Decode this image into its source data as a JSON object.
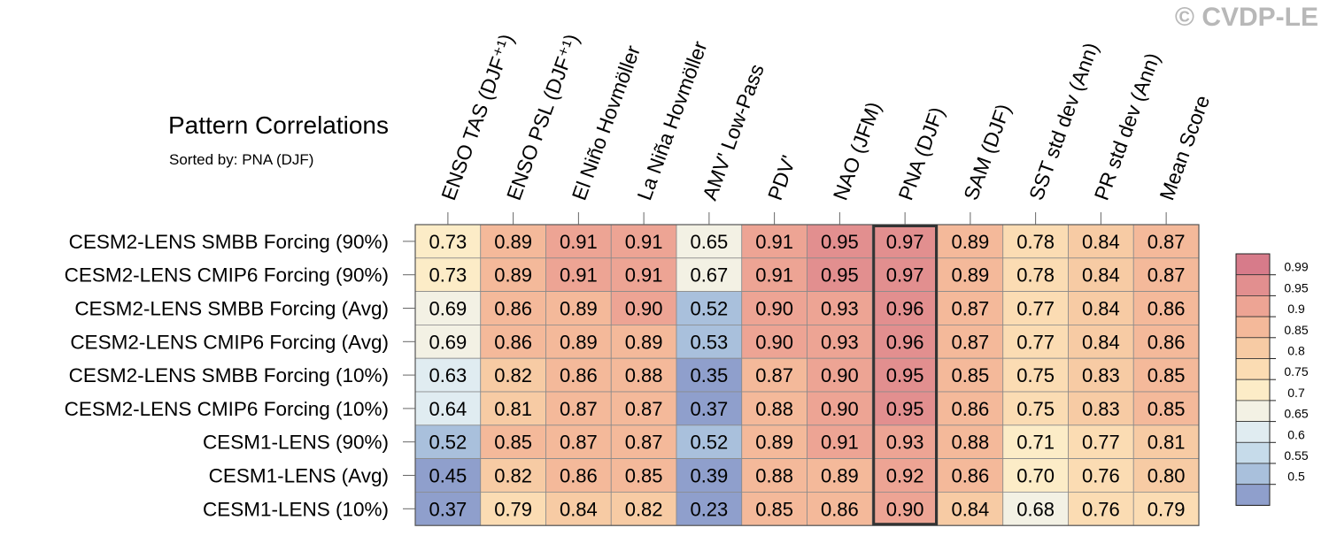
{
  "watermark": "© CVDP-LE",
  "chart_data": {
    "type": "heatmap",
    "title": "Pattern Correlations",
    "subtitle": "Sorted by: PNA (DJF)",
    "columns": [
      "ENSO TAS (DJF⁺¹)",
      "ENSO PSL (DJF⁺¹)",
      "El Niño Hovmöller",
      "La Niña Hovmöller",
      "AMV' Low-Pass",
      "PDV'",
      "NAO (JFM)",
      "PNA (DJF)",
      "SAM (DJF)",
      "SST std dev (Ann)",
      "PR std dev (Ann)",
      "Mean Score"
    ],
    "rows": [
      "CESM2-LENS SMBB Forcing (90%)",
      "CESM2-LENS CMIP6 Forcing (90%)",
      "CESM2-LENS SMBB Forcing (Avg)",
      "CESM2-LENS CMIP6 Forcing (Avg)",
      "CESM2-LENS SMBB Forcing (10%)",
      "CESM2-LENS CMIP6 Forcing (10%)",
      "CESM1-LENS (90%)",
      "CESM1-LENS (Avg)",
      "CESM1-LENS (10%)"
    ],
    "values": [
      [
        0.73,
        0.89,
        0.91,
        0.91,
        0.65,
        0.91,
        0.95,
        0.97,
        0.89,
        0.78,
        0.84,
        0.87
      ],
      [
        0.73,
        0.89,
        0.91,
        0.91,
        0.67,
        0.91,
        0.95,
        0.97,
        0.89,
        0.78,
        0.84,
        0.87
      ],
      [
        0.69,
        0.86,
        0.89,
        0.9,
        0.52,
        0.9,
        0.93,
        0.96,
        0.87,
        0.77,
        0.84,
        0.86
      ],
      [
        0.69,
        0.86,
        0.89,
        0.89,
        0.53,
        0.9,
        0.93,
        0.96,
        0.87,
        0.77,
        0.84,
        0.86
      ],
      [
        0.63,
        0.82,
        0.86,
        0.88,
        0.35,
        0.87,
        0.9,
        0.95,
        0.85,
        0.75,
        0.83,
        0.85
      ],
      [
        0.64,
        0.81,
        0.87,
        0.87,
        0.37,
        0.88,
        0.9,
        0.95,
        0.86,
        0.75,
        0.83,
        0.85
      ],
      [
        0.52,
        0.85,
        0.87,
        0.87,
        0.52,
        0.89,
        0.91,
        0.93,
        0.88,
        0.71,
        0.77,
        0.81
      ],
      [
        0.45,
        0.82,
        0.86,
        0.85,
        0.39,
        0.88,
        0.89,
        0.92,
        0.86,
        0.7,
        0.76,
        0.8
      ],
      [
        0.37,
        0.79,
        0.84,
        0.82,
        0.23,
        0.85,
        0.86,
        0.9,
        0.84,
        0.68,
        0.76,
        0.79
      ]
    ],
    "highlighted_column": "PNA (DJF)",
    "colorbar": {
      "ticks": [
        "0.99",
        "0.95",
        "0.9",
        "0.85",
        "0.8",
        "0.75",
        "0.7",
        "0.65",
        "0.6",
        "0.55",
        "0.5"
      ],
      "colors": [
        "#d77b8a",
        "#e28f8f",
        "#eda494",
        "#f4b99a",
        "#f7cba4",
        "#fbdcb3",
        "#fcecc7",
        "#f3f1e4",
        "#e0ecf1",
        "#c6dbea",
        "#a9c0dc",
        "#8f9fcc"
      ]
    },
    "legend_position": "right"
  }
}
